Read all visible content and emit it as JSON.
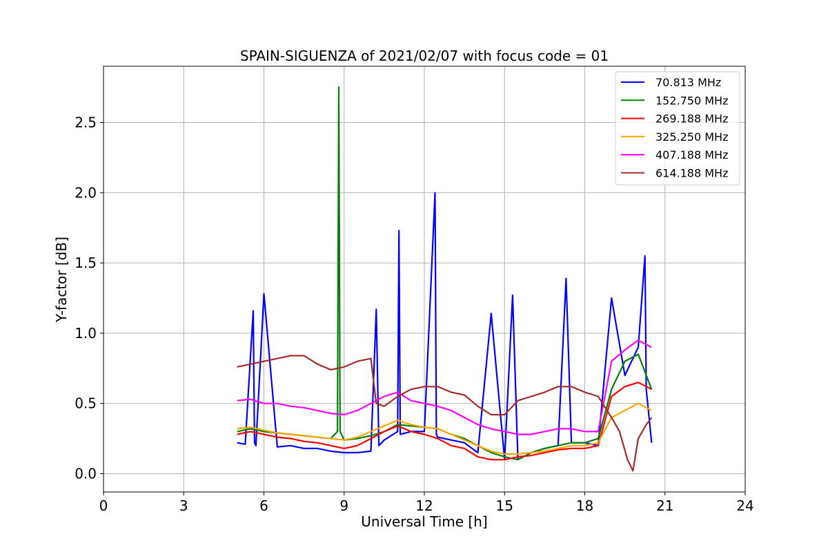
{
  "chart_data": {
    "type": "line",
    "title": "SPAIN-SIGUENZA of 2021/02/07 with focus code = 01",
    "xlabel": "Universal Time [h]",
    "ylabel": "Y-factor [dB]",
    "xlim": [
      0,
      24
    ],
    "ylim": [
      -0.13,
      2.9
    ],
    "xticks": [
      0,
      3,
      6,
      9,
      12,
      15,
      18,
      21,
      24
    ],
    "yticks": [
      0.0,
      0.5,
      1.0,
      1.5,
      2.0,
      2.5
    ],
    "ytick_labels": [
      "0.0",
      "0.5",
      "1.0",
      "1.5",
      "2.0",
      "2.5"
    ],
    "grid": true,
    "legend_position": "top-right",
    "series": [
      {
        "name": " 70.813 MHz",
        "color": "#0000ff",
        "x": [
          5.0,
          5.3,
          5.6,
          5.65,
          5.7,
          6.0,
          6.5,
          7.0,
          7.5,
          8.0,
          8.5,
          9.0,
          9.5,
          10.0,
          10.2,
          10.3,
          10.5,
          11.0,
          11.05,
          11.1,
          11.5,
          12.0,
          12.4,
          12.45,
          12.5,
          13.0,
          13.5,
          14.0,
          14.5,
          15.0,
          15.3,
          15.5,
          16.0,
          16.5,
          17.0,
          17.3,
          17.5,
          18.0,
          18.5,
          19.0,
          19.5,
          20.0,
          20.25,
          20.3,
          20.5
        ],
        "values": [
          0.22,
          0.21,
          1.16,
          0.22,
          0.2,
          1.28,
          0.19,
          0.2,
          0.18,
          0.18,
          0.16,
          0.15,
          0.15,
          0.16,
          1.17,
          0.2,
          0.24,
          0.3,
          1.73,
          0.28,
          0.3,
          0.3,
          2.0,
          0.28,
          0.26,
          0.24,
          0.22,
          0.15,
          1.14,
          0.1,
          1.27,
          0.1,
          0.15,
          0.18,
          0.2,
          1.39,
          0.22,
          0.22,
          0.2,
          1.25,
          0.7,
          0.9,
          1.55,
          0.6,
          0.22
        ]
      },
      {
        "name": "152.750 MHz",
        "color": "#008000",
        "x": [
          5.0,
          5.5,
          6.0,
          6.5,
          7.0,
          7.5,
          8.0,
          8.5,
          8.75,
          8.8,
          8.85,
          9.0,
          9.5,
          10.0,
          10.5,
          11.0,
          11.5,
          12.0,
          12.5,
          13.0,
          13.5,
          14.0,
          14.5,
          15.0,
          15.5,
          16.0,
          16.5,
          17.0,
          17.5,
          18.0,
          18.5,
          19.0,
          19.5,
          20.0,
          20.5
        ],
        "values": [
          0.3,
          0.32,
          0.3,
          0.29,
          0.28,
          0.27,
          0.26,
          0.25,
          0.3,
          2.75,
          0.3,
          0.24,
          0.25,
          0.27,
          0.3,
          0.35,
          0.34,
          0.33,
          0.32,
          0.28,
          0.25,
          0.2,
          0.15,
          0.12,
          0.1,
          0.15,
          0.18,
          0.2,
          0.22,
          0.22,
          0.25,
          0.6,
          0.8,
          0.85,
          0.6
        ]
      },
      {
        "name": "269.188 MHz",
        "color": "#ff0000",
        "x": [
          5.0,
          5.5,
          6.0,
          6.5,
          7.0,
          7.5,
          8.0,
          8.5,
          9.0,
          9.5,
          10.0,
          10.5,
          11.0,
          11.5,
          12.0,
          12.5,
          13.0,
          13.5,
          14.0,
          14.5,
          15.0,
          15.5,
          16.0,
          16.5,
          17.0,
          17.5,
          18.0,
          18.5,
          19.0,
          19.5,
          20.0,
          20.5
        ],
        "values": [
          0.28,
          0.3,
          0.28,
          0.26,
          0.25,
          0.23,
          0.22,
          0.2,
          0.18,
          0.2,
          0.25,
          0.3,
          0.34,
          0.3,
          0.28,
          0.25,
          0.2,
          0.18,
          0.12,
          0.1,
          0.1,
          0.12,
          0.13,
          0.15,
          0.17,
          0.18,
          0.18,
          0.2,
          0.55,
          0.62,
          0.65,
          0.6
        ]
      },
      {
        "name": "325.250 MHz",
        "color": "#ffa500",
        "x": [
          5.0,
          5.5,
          6.0,
          6.5,
          7.0,
          7.5,
          8.0,
          8.5,
          9.0,
          9.5,
          10.0,
          10.5,
          11.0,
          11.5,
          12.0,
          12.5,
          13.0,
          13.5,
          14.0,
          14.5,
          15.0,
          15.5,
          16.0,
          16.5,
          17.0,
          17.5,
          18.0,
          18.5,
          19.0,
          19.5,
          20.0,
          20.5
        ],
        "values": [
          0.32,
          0.33,
          0.31,
          0.29,
          0.28,
          0.27,
          0.26,
          0.25,
          0.24,
          0.26,
          0.3,
          0.34,
          0.38,
          0.35,
          0.33,
          0.32,
          0.28,
          0.24,
          0.2,
          0.16,
          0.14,
          0.14,
          0.15,
          0.16,
          0.18,
          0.2,
          0.2,
          0.22,
          0.4,
          0.45,
          0.5,
          0.45
        ]
      },
      {
        "name": "407.188 MHz",
        "color": "#ff00ff",
        "x": [
          5.0,
          5.5,
          6.0,
          6.5,
          7.0,
          7.5,
          8.0,
          8.5,
          9.0,
          9.5,
          10.0,
          10.5,
          11.0,
          11.5,
          12.0,
          12.5,
          13.0,
          13.5,
          14.0,
          14.5,
          15.0,
          15.5,
          16.0,
          16.5,
          17.0,
          17.5,
          18.0,
          18.5,
          19.0,
          19.5,
          20.0,
          20.5
        ],
        "values": [
          0.52,
          0.53,
          0.5,
          0.5,
          0.48,
          0.47,
          0.45,
          0.43,
          0.42,
          0.45,
          0.5,
          0.55,
          0.58,
          0.52,
          0.5,
          0.48,
          0.45,
          0.4,
          0.35,
          0.32,
          0.3,
          0.28,
          0.28,
          0.3,
          0.32,
          0.32,
          0.3,
          0.3,
          0.8,
          0.88,
          0.95,
          0.9
        ]
      },
      {
        "name": "614.188 MHz",
        "color": "#a52a2a",
        "x": [
          5.0,
          5.5,
          6.0,
          6.5,
          7.0,
          7.5,
          8.0,
          8.5,
          9.0,
          9.5,
          10.0,
          10.2,
          10.5,
          11.0,
          11.5,
          12.0,
          12.5,
          13.0,
          13.5,
          14.0,
          14.5,
          15.0,
          15.5,
          16.0,
          16.5,
          17.0,
          17.5,
          18.0,
          18.5,
          19.0,
          19.3,
          19.6,
          19.8,
          20.0,
          20.3,
          20.5
        ],
        "values": [
          0.76,
          0.78,
          0.8,
          0.82,
          0.84,
          0.84,
          0.78,
          0.74,
          0.76,
          0.8,
          0.82,
          0.5,
          0.48,
          0.55,
          0.6,
          0.62,
          0.62,
          0.58,
          0.56,
          0.48,
          0.42,
          0.42,
          0.52,
          0.55,
          0.58,
          0.62,
          0.62,
          0.58,
          0.55,
          0.4,
          0.3,
          0.1,
          0.02,
          0.25,
          0.35,
          0.4
        ]
      }
    ]
  }
}
